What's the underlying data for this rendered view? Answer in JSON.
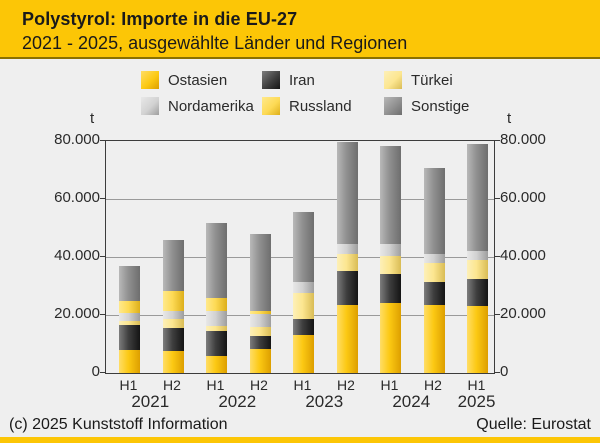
{
  "header": {
    "title": "Polystyrol: Importe in die EU-27",
    "subtitle": "2021 - 2025, ausgewählte Länder und Regionen"
  },
  "footer": {
    "copyright": "(c) 2025 Kunststoff Information",
    "source": "Quelle: Eurostat"
  },
  "colors": {
    "header_yellow": "#fcc606",
    "background": "#efefef",
    "ostasien": [
      "#ffdd66",
      "#fcc913",
      "#dd9f00"
    ],
    "iran": [
      "#7d7d7d",
      "#3f3f3f",
      "#141414"
    ],
    "tuerkei": [
      "#fdf0b8",
      "#fce690",
      "#d9bc55"
    ],
    "nordamerika": [
      "#e8e8e8",
      "#d2d2d2",
      "#9e9e9e"
    ],
    "russland": [
      "#ffe98c",
      "#fdda55",
      "#ddaf1a"
    ],
    "sonstige": [
      "#b8b8b8",
      "#909090",
      "#6e6e6e"
    ]
  },
  "chart_data": {
    "type": "bar",
    "stacked": true,
    "title": "Polystyrol: Importe in die EU-27",
    "subtitle": "2021 - 2025, ausgewählte Länder und Regionen",
    "unit_label": "t",
    "ylabel": "t",
    "xlabel": "",
    "grid": true,
    "legend_position": "top",
    "ylim": [
      0,
      80000
    ],
    "yticks": [
      {
        "value": 80000,
        "label": "80.000"
      },
      {
        "value": 60000,
        "label": "60.000"
      },
      {
        "value": 40000,
        "label": "40.000"
      },
      {
        "value": 20000,
        "label": "20.000"
      },
      {
        "value": 0,
        "label": "0"
      }
    ],
    "categories": [
      "H1",
      "H2",
      "H1",
      "H2",
      "H1",
      "H2",
      "H1",
      "H2",
      "H1"
    ],
    "year_groups": [
      {
        "label": "2021",
        "bars": [
          0,
          1
        ]
      },
      {
        "label": "2022",
        "bars": [
          2,
          3
        ]
      },
      {
        "label": "2023",
        "bars": [
          4,
          5
        ]
      },
      {
        "label": "2024",
        "bars": [
          6,
          7
        ]
      },
      {
        "label": "2025",
        "bars": [
          8
        ]
      }
    ],
    "series": [
      {
        "name": "Ostasien",
        "color_key": "ostasien",
        "values": [
          8000,
          7500,
          6000,
          8400,
          13000,
          23500,
          24200,
          23600,
          23100
        ]
      },
      {
        "name": "Iran",
        "color_key": "iran",
        "values": [
          8700,
          8100,
          8500,
          4400,
          5500,
          11800,
          9800,
          7700,
          9200
        ]
      },
      {
        "name": "Türkei",
        "color_key": "tuerkei",
        "values": [
          1400,
          2900,
          1800,
          2900,
          9000,
          5800,
          6400,
          6700,
          6600
        ]
      },
      {
        "name": "Nordamerika",
        "color_key": "nordamerika",
        "values": [
          2600,
          2900,
          5200,
          4800,
          3800,
          3500,
          4200,
          3000,
          3100
        ]
      },
      {
        "name": "Russland",
        "color_key": "russland",
        "values": [
          4100,
          6900,
          4300,
          1000,
          0,
          0,
          0,
          0,
          0
        ]
      },
      {
        "name": "Sonstige",
        "color_key": "sonstige",
        "values": [
          12100,
          17400,
          26000,
          26300,
          24200,
          35200,
          33800,
          29800,
          36900
        ]
      }
    ]
  }
}
